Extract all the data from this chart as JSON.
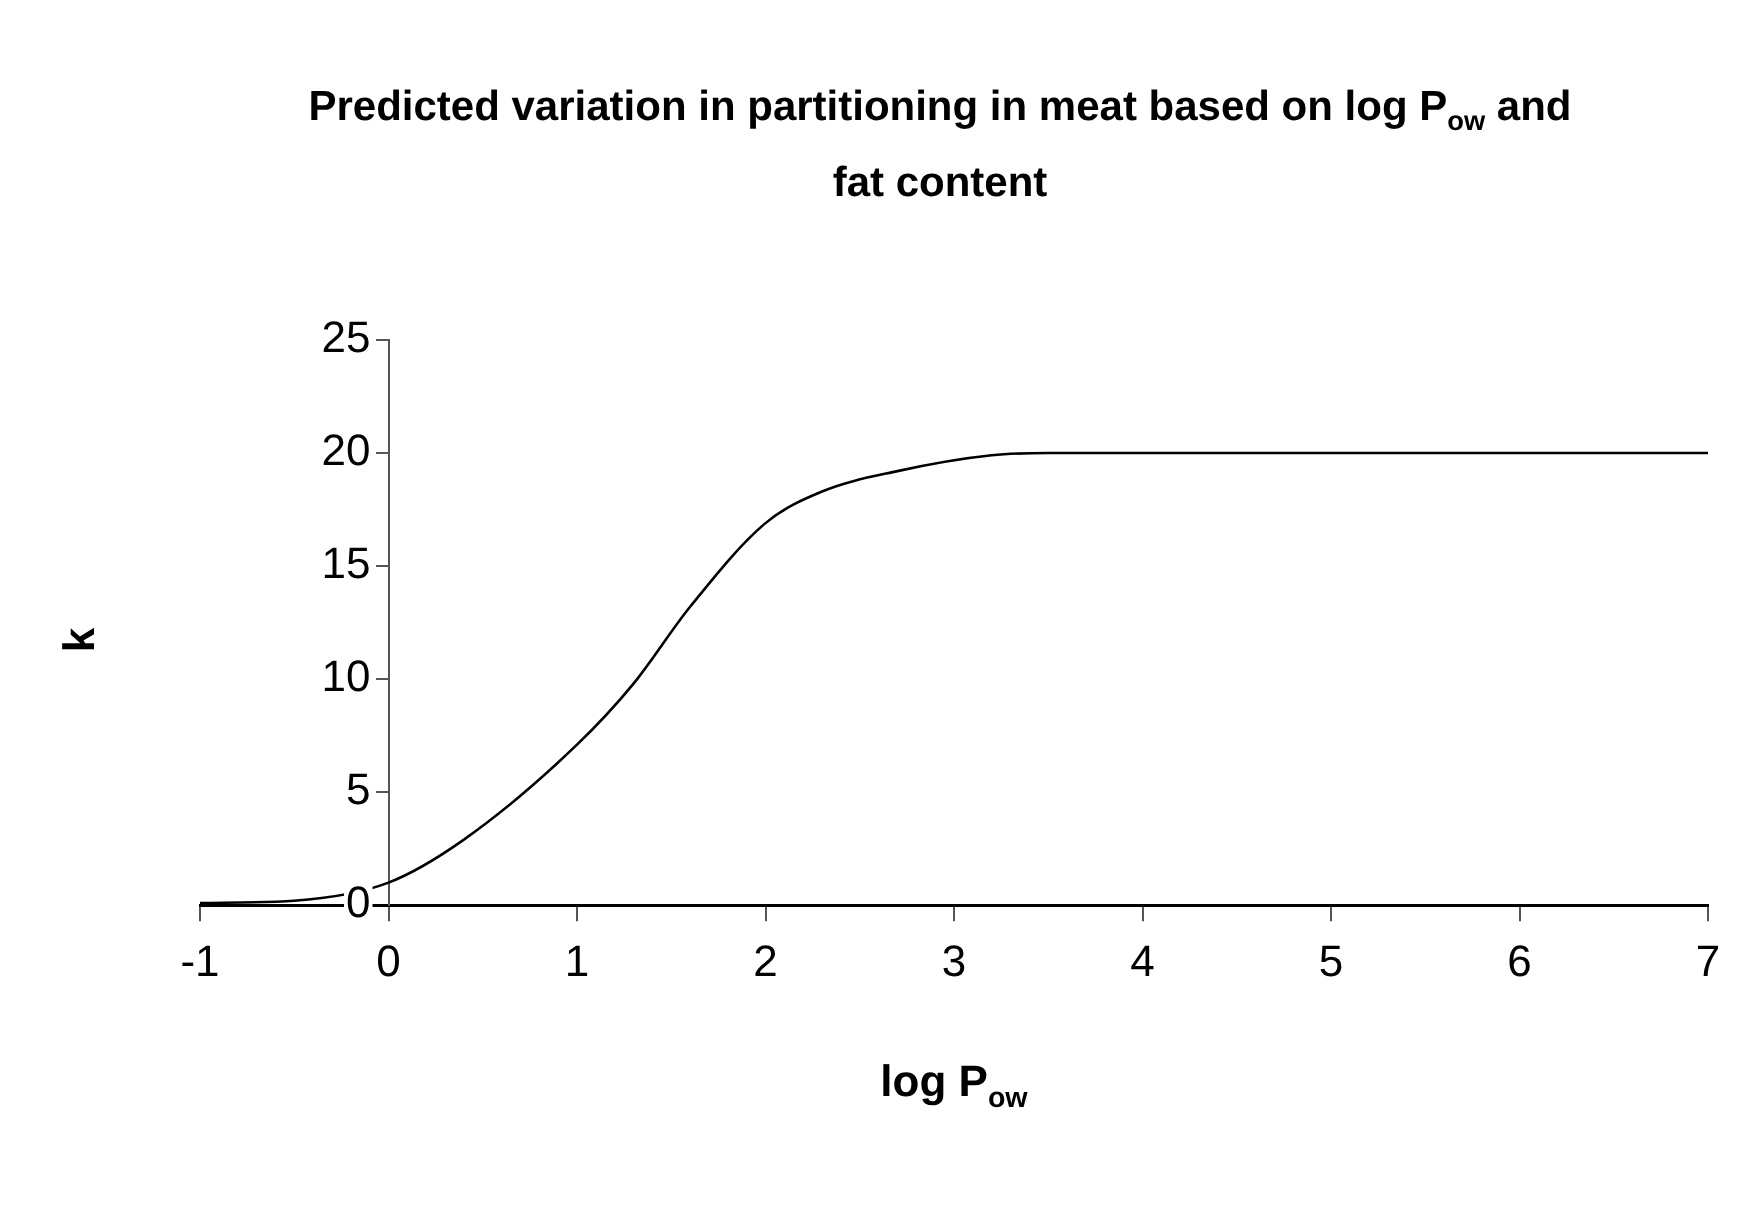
{
  "chart_data": {
    "type": "line",
    "title": "Predicted variation in partitioning in meat based on log P$_{ow}$ and fat content",
    "xlabel": "log P$_{ow}$",
    "ylabel": "k",
    "series": [
      {
        "color": "#000000",
        "x": [
          -1,
          -0.5,
          0,
          0.4,
          1,
          1.3,
          1.6,
          2,
          2.3,
          2.7,
          3.2,
          3.5,
          4,
          5,
          6,
          7
        ],
        "values": [
          0.1,
          0.2,
          1,
          2.9,
          7.1,
          9.8,
          13.2,
          16.9,
          18.3,
          19.2,
          19.9,
          20,
          20,
          20,
          20,
          20
        ]
      }
    ],
    "xlim": [
      -1,
      7
    ],
    "xticks": [
      -1,
      0,
      1,
      2,
      3,
      4,
      5,
      6,
      7
    ],
    "ylim": [
      0,
      25
    ],
    "yticks": [
      0,
      5,
      10,
      15,
      20,
      25
    ],
    "grid": false,
    "legend": false,
    "marker": "none",
    "line_style": "solid"
  }
}
